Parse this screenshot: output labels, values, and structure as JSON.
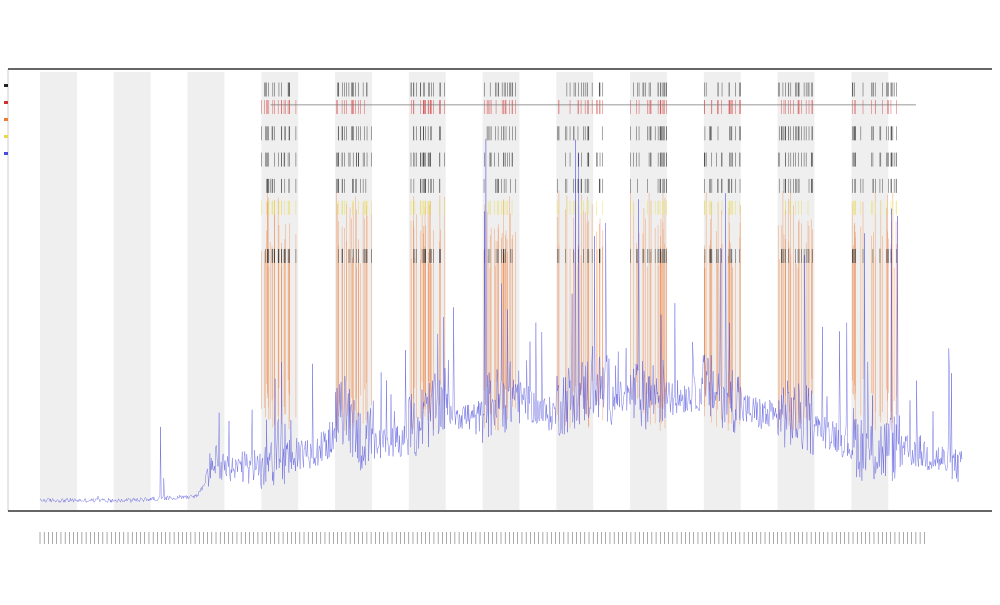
{
  "chart_data": {
    "type": "line",
    "title": "",
    "subtitle_lines": [
      "",
      ""
    ],
    "xlabel": "",
    "ylabel": "",
    "grid": "alternating-vertical-bands",
    "legend_position": "top-left",
    "colors": {
      "line": "#4b4bdc",
      "band": "#efefef",
      "orange_spike": "#ee7a33",
      "yellow_mark": "#e7d94a",
      "red_mark": "#d32f2f",
      "event_mark": "#222222",
      "axis": "#333333"
    },
    "bands": [
      [
        0.0,
        0.04
      ],
      [
        0.08,
        0.12
      ],
      [
        0.16,
        0.2
      ],
      [
        0.24,
        0.28
      ],
      [
        0.32,
        0.36
      ],
      [
        0.4,
        0.44
      ],
      [
        0.48,
        0.52
      ],
      [
        0.56,
        0.6
      ],
      [
        0.64,
        0.68
      ],
      [
        0.72,
        0.76
      ],
      [
        0.8,
        0.84
      ],
      [
        0.88,
        0.92
      ]
    ],
    "baseline_profile": [
      [
        0.0,
        0.02
      ],
      [
        0.1,
        0.02
      ],
      [
        0.17,
        0.03
      ],
      [
        0.18,
        0.06
      ],
      [
        0.19,
        0.1
      ],
      [
        0.2,
        0.07
      ],
      [
        0.25,
        0.09
      ],
      [
        0.31,
        0.13
      ],
      [
        0.33,
        0.2
      ],
      [
        0.35,
        0.12
      ],
      [
        0.4,
        0.15
      ],
      [
        0.44,
        0.22
      ],
      [
        0.47,
        0.19
      ],
      [
        0.52,
        0.24
      ],
      [
        0.55,
        0.2
      ],
      [
        0.6,
        0.25
      ],
      [
        0.65,
        0.23
      ],
      [
        0.72,
        0.25
      ],
      [
        0.77,
        0.21
      ],
      [
        0.82,
        0.18
      ],
      [
        0.86,
        0.16
      ],
      [
        0.9,
        0.1
      ],
      [
        0.95,
        0.12
      ],
      [
        1.0,
        0.08
      ]
    ],
    "activity_clusters": [
      [
        0.24,
        0.28
      ],
      [
        0.32,
        0.36
      ],
      [
        0.4,
        0.44
      ],
      [
        0.48,
        0.52
      ],
      [
        0.56,
        0.62
      ],
      [
        0.64,
        0.68
      ],
      [
        0.72,
        0.76
      ],
      [
        0.8,
        0.84
      ],
      [
        0.88,
        0.93
      ]
    ],
    "x_range": [
      0,
      1
    ],
    "y_range": [
      0,
      1
    ]
  }
}
